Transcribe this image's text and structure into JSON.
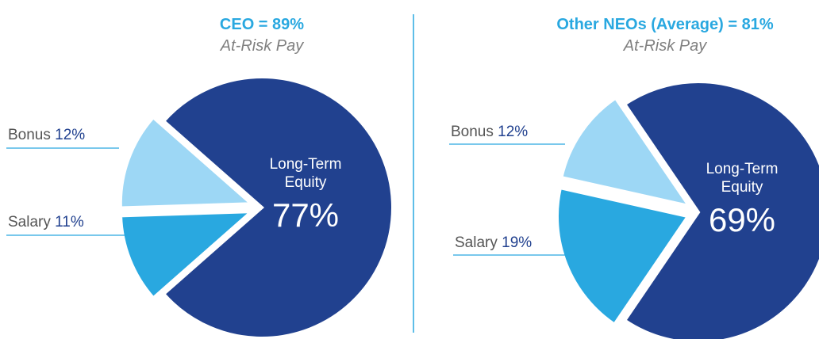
{
  "chart_data": [
    {
      "type": "pie",
      "title": "CEO = 89%",
      "subtitle": "At-Risk Pay",
      "categories": [
        "Long-Term Equity",
        "Bonus",
        "Salary"
      ],
      "values": [
        77,
        12,
        11
      ],
      "value_labels": [
        "77%",
        "12%",
        "11%"
      ],
      "colors": [
        "#21418f",
        "#9dd7f5",
        "#29a8e0"
      ]
    },
    {
      "type": "pie",
      "title": "Other NEOs (Average) = 81%",
      "subtitle": "At-Risk Pay",
      "categories": [
        "Long-Term Equity",
        "Bonus",
        "Salary"
      ],
      "values": [
        69,
        12,
        19
      ],
      "value_labels": [
        "69%",
        "12%",
        "19%"
      ],
      "colors": [
        "#21418f",
        "#9dd7f5",
        "#29a8e0"
      ]
    }
  ]
}
